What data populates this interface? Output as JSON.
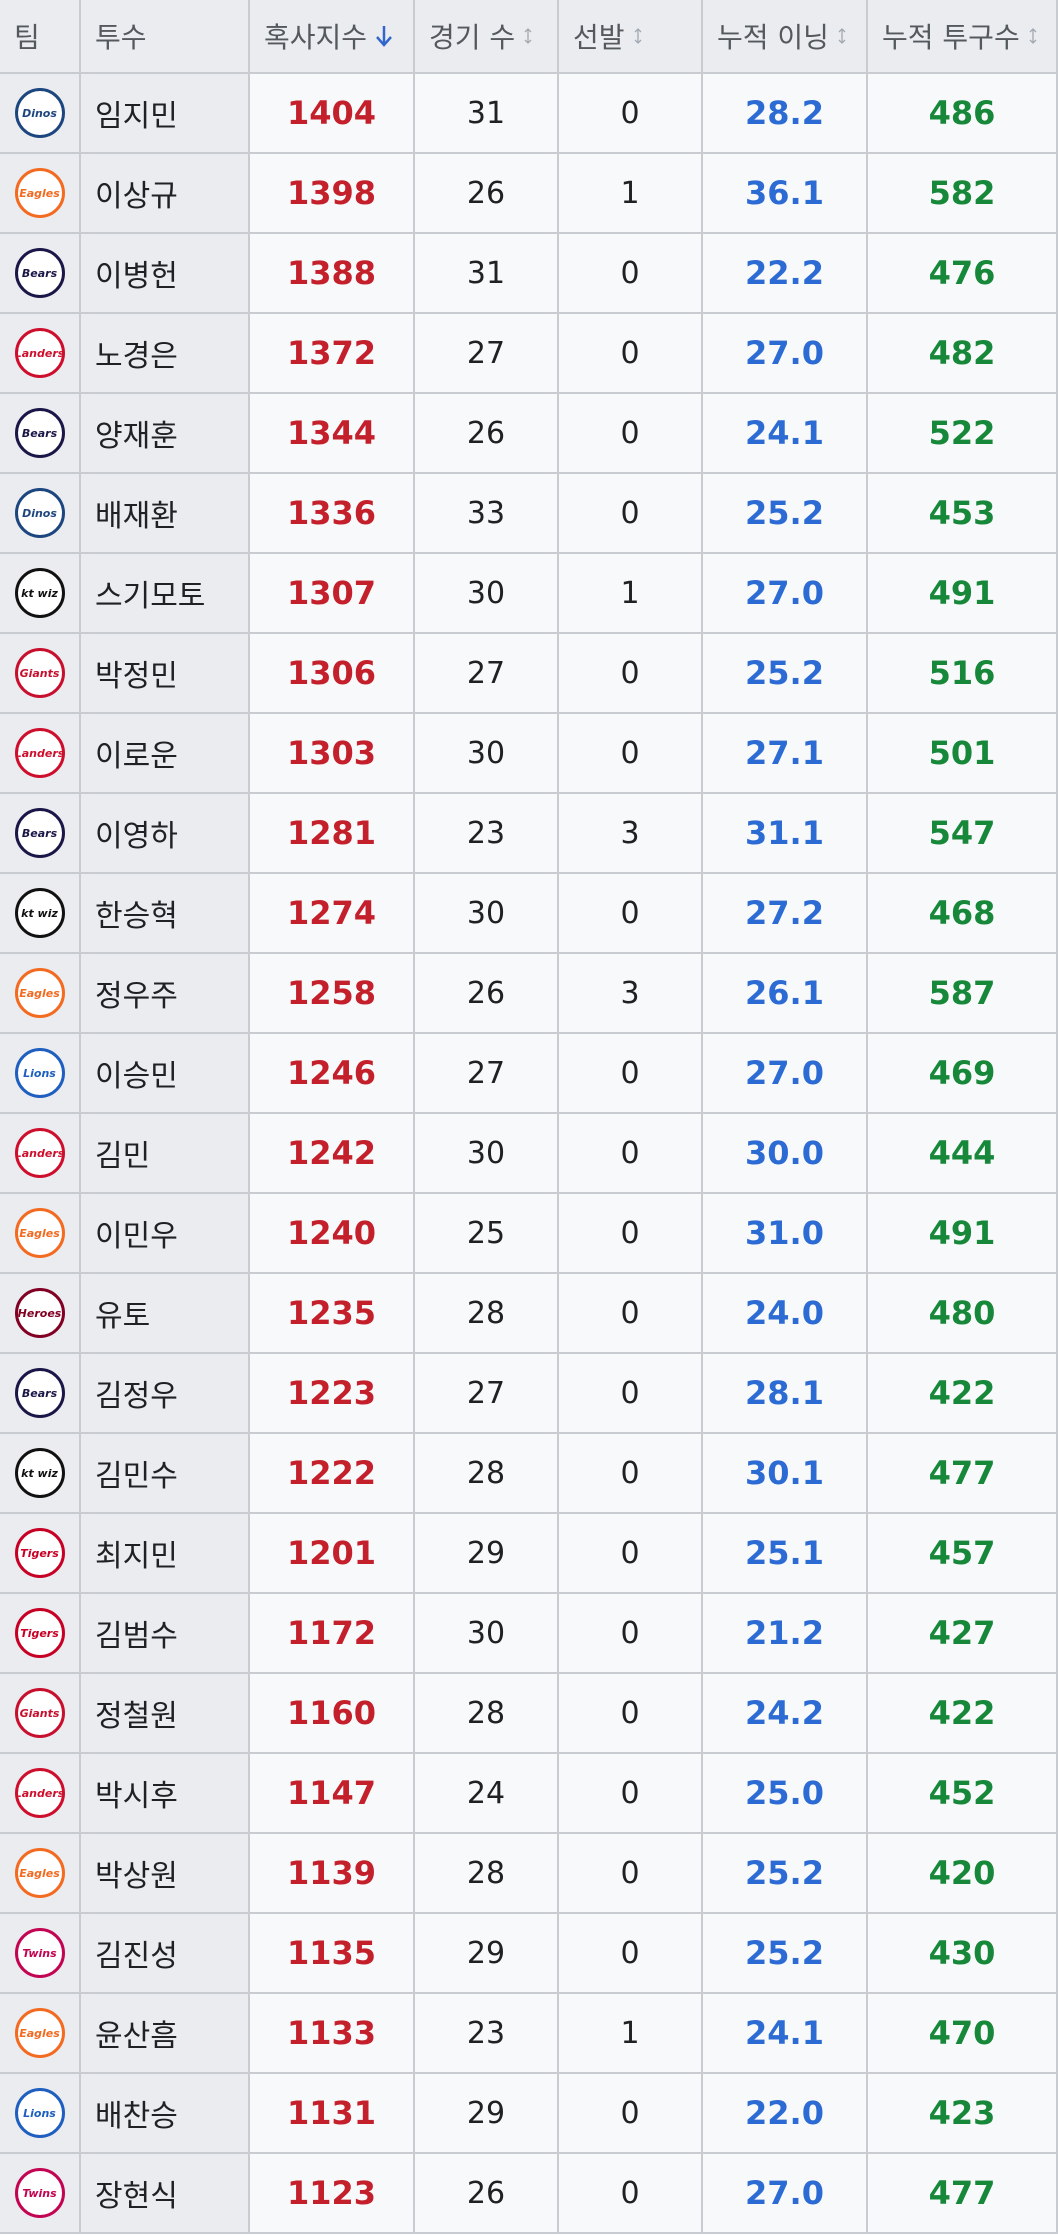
{
  "table": {
    "header": [
      "팀",
      "투수",
      "혹사지수",
      "경기 수",
      "선발",
      "누적 이닝",
      "누적 투구수"
    ],
    "rows": [
      {
        "team": "Dinos",
        "team_color": "#1d467f",
        "name": "임지민",
        "index": 1404,
        "games": 31,
        "starts": 0,
        "innings": "28.2",
        "pitches": 486
      },
      {
        "team": "Eagles",
        "team_color": "#f26b21",
        "name": "이상규",
        "index": 1398,
        "games": 26,
        "starts": 1,
        "innings": "36.1",
        "pitches": 582
      },
      {
        "team": "Bears",
        "team_color": "#1a1748",
        "name": "이병헌",
        "index": 1388,
        "games": 31,
        "starts": 0,
        "innings": "22.2",
        "pitches": 476
      },
      {
        "team": "Landers",
        "team_color": "#ce0e2d",
        "name": "노경은",
        "index": 1372,
        "games": 27,
        "starts": 0,
        "innings": "27.0",
        "pitches": 482
      },
      {
        "team": "Bears",
        "team_color": "#1a1748",
        "name": "양재훈",
        "index": 1344,
        "games": 26,
        "starts": 0,
        "innings": "24.1",
        "pitches": 522
      },
      {
        "team": "Dinos",
        "team_color": "#1d467f",
        "name": "배재환",
        "index": 1336,
        "games": 33,
        "starts": 0,
        "innings": "25.2",
        "pitches": 453
      },
      {
        "team": "kt wiz",
        "team_color": "#111111",
        "name": "스기모토",
        "index": 1307,
        "games": 30,
        "starts": 1,
        "innings": "27.0",
        "pitches": 491
      },
      {
        "team": "Giants",
        "team_color": "#c8102e",
        "name": "박정민",
        "index": 1306,
        "games": 27,
        "starts": 0,
        "innings": "25.2",
        "pitches": 516
      },
      {
        "team": "Landers",
        "team_color": "#ce0e2d",
        "name": "이로운",
        "index": 1303,
        "games": 30,
        "starts": 0,
        "innings": "27.1",
        "pitches": 501
      },
      {
        "team": "Bears",
        "team_color": "#1a1748",
        "name": "이영하",
        "index": 1281,
        "games": 23,
        "starts": 3,
        "innings": "31.1",
        "pitches": 547
      },
      {
        "team": "kt wiz",
        "team_color": "#111111",
        "name": "한승혁",
        "index": 1274,
        "games": 30,
        "starts": 0,
        "innings": "27.2",
        "pitches": 468
      },
      {
        "team": "Eagles",
        "team_color": "#f26b21",
        "name": "정우주",
        "index": 1258,
        "games": 26,
        "starts": 3,
        "innings": "26.1",
        "pitches": 587
      },
      {
        "team": "Lions",
        "team_color": "#1f5fbf",
        "name": "이승민",
        "index": 1246,
        "games": 27,
        "starts": 0,
        "innings": "27.0",
        "pitches": 469
      },
      {
        "team": "Landers",
        "team_color": "#ce0e2d",
        "name": "김민",
        "index": 1242,
        "games": 30,
        "starts": 0,
        "innings": "30.0",
        "pitches": 444
      },
      {
        "team": "Eagles",
        "team_color": "#f26b21",
        "name": "이민우",
        "index": 1240,
        "games": 25,
        "starts": 0,
        "innings": "31.0",
        "pitches": 491
      },
      {
        "team": "Heroes",
        "team_color": "#820024",
        "name": "유토",
        "index": 1235,
        "games": 28,
        "starts": 0,
        "innings": "24.0",
        "pitches": 480
      },
      {
        "team": "Bears",
        "team_color": "#1a1748",
        "name": "김정우",
        "index": 1223,
        "games": 27,
        "starts": 0,
        "innings": "28.1",
        "pitches": 422
      },
      {
        "team": "kt wiz",
        "team_color": "#111111",
        "name": "김민수",
        "index": 1222,
        "games": 28,
        "starts": 0,
        "innings": "30.1",
        "pitches": 477
      },
      {
        "team": "Tigers",
        "team_color": "#c70125",
        "name": "최지민",
        "index": 1201,
        "games": 29,
        "starts": 0,
        "innings": "25.1",
        "pitches": 457
      },
      {
        "team": "Tigers",
        "team_color": "#c70125",
        "name": "김범수",
        "index": 1172,
        "games": 30,
        "starts": 0,
        "innings": "21.2",
        "pitches": 427
      },
      {
        "team": "Giants",
        "team_color": "#c8102e",
        "name": "정철원",
        "index": 1160,
        "games": 28,
        "starts": 0,
        "innings": "24.2",
        "pitches": 422
      },
      {
        "team": "Landers",
        "team_color": "#ce0e2d",
        "name": "박시후",
        "index": 1147,
        "games": 24,
        "starts": 0,
        "innings": "25.0",
        "pitches": 452
      },
      {
        "team": "Eagles",
        "team_color": "#f26b21",
        "name": "박상원",
        "index": 1139,
        "games": 28,
        "starts": 0,
        "innings": "25.2",
        "pitches": 420
      },
      {
        "team": "Twins",
        "team_color": "#c30452",
        "name": "김진성",
        "index": 1135,
        "games": 29,
        "starts": 0,
        "innings": "25.2",
        "pitches": 430
      },
      {
        "team": "Eagles",
        "team_color": "#f26b21",
        "name": "윤산흠",
        "index": 1133,
        "games": 23,
        "starts": 1,
        "innings": "24.1",
        "pitches": 470
      },
      {
        "team": "Lions",
        "team_color": "#1f5fbf",
        "name": "배찬승",
        "index": 1131,
        "games": 29,
        "starts": 0,
        "innings": "22.0",
        "pitches": 423
      },
      {
        "team": "Twins",
        "team_color": "#c30452",
        "name": "장현식",
        "index": 1123,
        "games": 26,
        "starts": 0,
        "innings": "27.0",
        "pitches": 477
      }
    ]
  }
}
